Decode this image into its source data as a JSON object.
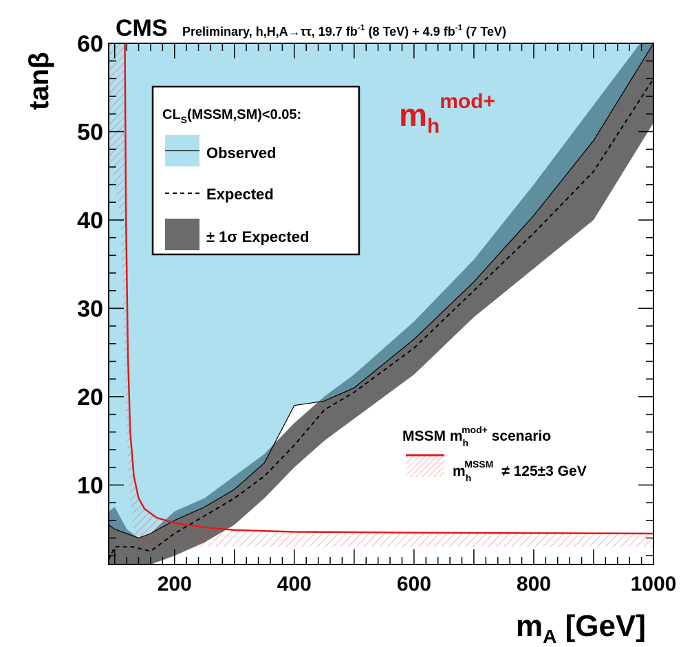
{
  "header": {
    "experiment": "CMS",
    "subtitle": "Preliminary, h,H,A→ττ, 19.7 fb",
    "lumi_sup": "-1",
    "subtitle2": " (8 TeV) + 4.9 fb",
    "lumi_sup2": "-1",
    "subtitle3": " (7 TeV)"
  },
  "axes": {
    "xlabel_main": "m",
    "xlabel_sub": "A",
    "xlabel_unit": " [GeV]",
    "ylabel": "tanβ"
  },
  "scenario_label": {
    "main": "m",
    "sub": "h",
    "sup": "mod+"
  },
  "legend": {
    "title_main": "CL",
    "title_sub": "S",
    "title_rest": "(MSSM,SM)<0.05:",
    "observed": "Observed",
    "expected": "Expected",
    "sigma": "± 1σ Expected"
  },
  "legend2": {
    "title_a": "MSSM m",
    "title_sub": "h",
    "title_sup": "mod+",
    "title_b": " scenario",
    "exclusion_main": "m",
    "exclusion_sub": "h",
    "exclusion_sup": "MSSM",
    "exclusion_rest": "≠ 125±3 GeV"
  },
  "colors": {
    "observed_fill": "#aee0ef",
    "sigma_band": "#6b6b6b",
    "overlap": "#5f8f9f",
    "mh_curve": "#e31a1c",
    "scenario_label": "#e31a1c"
  },
  "chart_data": {
    "type": "area",
    "xlim": [
      90,
      1000
    ],
    "ylim": [
      1,
      60
    ],
    "x_ticks": [
      200,
      400,
      600,
      800,
      1000
    ],
    "y_ticks": [
      10,
      20,
      30,
      40,
      50,
      60
    ],
    "series": [
      {
        "name": "Observed",
        "x": [
          90,
          100,
          120,
          140,
          160,
          200,
          250,
          300,
          350,
          400,
          450,
          500,
          600,
          700,
          800,
          900,
          1000
        ],
        "y": [
          5.5,
          5.0,
          4.5,
          4.0,
          4.5,
          6.0,
          7.5,
          9.5,
          12.5,
          19.0,
          19.5,
          21.0,
          26.5,
          33.0,
          40.5,
          49.0,
          60.0
        ]
      },
      {
        "name": "Expected",
        "x": [
          90,
          100,
          130,
          160,
          200,
          250,
          300,
          350,
          400,
          450,
          500,
          600,
          700,
          800,
          900,
          1000
        ],
        "y": [
          1.5,
          3.0,
          3.0,
          2.5,
          4.5,
          6.5,
          8.5,
          11.0,
          14.5,
          18.5,
          20.5,
          25.5,
          32.0,
          38.5,
          45.5,
          56.0
        ]
      },
      {
        "name": "± 1σ Expected upper",
        "x": [
          90,
          100,
          120,
          140,
          160,
          200,
          250,
          300,
          350,
          400,
          450,
          500,
          600,
          700,
          800,
          900,
          1000
        ],
        "y": [
          7.0,
          7.5,
          5.0,
          4.0,
          4.5,
          7.0,
          8.5,
          11.0,
          13.5,
          17.0,
          20.0,
          22.5,
          28.5,
          35.5,
          44.0,
          53.0,
          62.0
        ]
      },
      {
        "name": "± 1σ Expected lower",
        "x": [
          90,
          100,
          120,
          140,
          160,
          200,
          250,
          300,
          350,
          400,
          450,
          500,
          600,
          700,
          800,
          900,
          1000
        ],
        "y": [
          1.0,
          1.0,
          1.0,
          1.0,
          1.0,
          2.0,
          3.5,
          5.5,
          8.5,
          12.0,
          15.0,
          17.5,
          22.5,
          29.0,
          34.5,
          40.0,
          51.0
        ]
      },
      {
        "name": "m_h^MSSM ≠ 125±3 GeV",
        "x": [
          117,
          119,
          122,
          126,
          132,
          140,
          150,
          170,
          200,
          250,
          300,
          400,
          600,
          800,
          1000
        ],
        "y": [
          60,
          40,
          25,
          16,
          11,
          8.5,
          7.3,
          6.3,
          5.7,
          5.2,
          4.9,
          4.7,
          4.6,
          4.55,
          4.5
        ]
      }
    ],
    "grid": false,
    "legend_position": "top-left"
  }
}
